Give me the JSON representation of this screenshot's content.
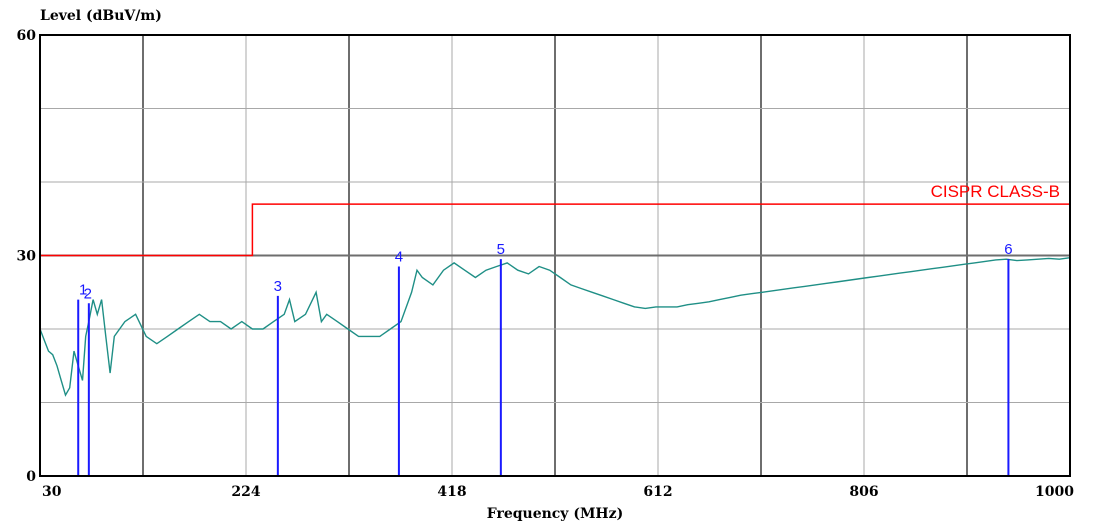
{
  "chart_data": {
    "type": "line",
    "title": "",
    "xlabel": "Frequency (MHz)",
    "ylabel": "Level (dBuV/m)",
    "xlim": [
      30,
      1000
    ],
    "ylim": [
      0,
      60
    ],
    "x_ticks": [
      "30",
      "224",
      "418",
      "612",
      "806",
      "1000"
    ],
    "y_ticks": [
      "0",
      "30",
      "60"
    ],
    "x_tick_values": [
      30,
      224,
      418,
      612,
      806,
      1000
    ],
    "y_tick_values": [
      0,
      30,
      60
    ],
    "x_grid_count": 10,
    "y_grid_count": 6,
    "grid": true,
    "colors": {
      "trace": "#1f8f86",
      "limit": "#ff0000",
      "marker": "#1a1aff",
      "grid_minor": "#a8a8a8",
      "grid_major": "#6e6e6e"
    },
    "limit_line": {
      "label": "CISPR CLASS-B",
      "points": [
        [
          30,
          30
        ],
        [
          230,
          30
        ],
        [
          230,
          37
        ],
        [
          1000,
          37
        ]
      ]
    },
    "series": [
      {
        "values": [
          [
            30,
            20
          ],
          [
            34,
            18.5
          ],
          [
            38,
            17
          ],
          [
            42,
            16.5
          ],
          [
            46,
            15
          ],
          [
            50,
            13
          ],
          [
            54,
            11
          ],
          [
            58,
            12
          ],
          [
            62,
            17
          ],
          [
            66,
            15
          ],
          [
            70,
            13
          ],
          [
            73,
            19
          ],
          [
            76,
            21
          ],
          [
            80,
            24
          ],
          [
            84,
            22
          ],
          [
            88,
            24
          ],
          [
            92,
            19
          ],
          [
            96,
            14
          ],
          [
            100,
            19
          ],
          [
            110,
            21
          ],
          [
            120,
            22
          ],
          [
            130,
            19
          ],
          [
            140,
            18
          ],
          [
            150,
            19
          ],
          [
            160,
            20
          ],
          [
            170,
            21
          ],
          [
            180,
            22
          ],
          [
            190,
            21
          ],
          [
            200,
            21
          ],
          [
            210,
            20
          ],
          [
            220,
            21
          ],
          [
            230,
            20
          ],
          [
            240,
            20
          ],
          [
            250,
            21
          ],
          [
            260,
            22
          ],
          [
            265,
            24
          ],
          [
            270,
            21
          ],
          [
            280,
            22
          ],
          [
            290,
            25
          ],
          [
            295,
            21
          ],
          [
            300,
            22
          ],
          [
            310,
            21
          ],
          [
            320,
            20
          ],
          [
            330,
            19
          ],
          [
            340,
            19
          ],
          [
            350,
            19
          ],
          [
            360,
            20
          ],
          [
            370,
            21
          ],
          [
            380,
            25
          ],
          [
            385,
            28
          ],
          [
            390,
            27
          ],
          [
            400,
            26
          ],
          [
            410,
            28
          ],
          [
            420,
            29
          ],
          [
            430,
            28
          ],
          [
            440,
            27
          ],
          [
            450,
            28
          ],
          [
            460,
            28.5
          ],
          [
            470,
            29
          ],
          [
            480,
            28
          ],
          [
            490,
            27.5
          ],
          [
            500,
            28.5
          ],
          [
            510,
            28
          ],
          [
            520,
            27
          ],
          [
            530,
            26
          ],
          [
            540,
            25.5
          ],
          [
            550,
            25
          ],
          [
            560,
            24.5
          ],
          [
            570,
            24
          ],
          [
            580,
            23.5
          ],
          [
            590,
            23
          ],
          [
            600,
            22.8
          ],
          [
            610,
            23
          ],
          [
            620,
            23
          ],
          [
            630,
            23
          ],
          [
            640,
            23.3
          ],
          [
            650,
            23.5
          ],
          [
            660,
            23.7
          ],
          [
            670,
            24
          ],
          [
            680,
            24.3
          ],
          [
            690,
            24.6
          ],
          [
            700,
            24.8
          ],
          [
            710,
            25
          ],
          [
            720,
            25.2
          ],
          [
            730,
            25.4
          ],
          [
            740,
            25.6
          ],
          [
            750,
            25.8
          ],
          [
            760,
            26
          ],
          [
            770,
            26.2
          ],
          [
            780,
            26.4
          ],
          [
            790,
            26.6
          ],
          [
            800,
            26.8
          ],
          [
            810,
            27
          ],
          [
            820,
            27.2
          ],
          [
            830,
            27.4
          ],
          [
            840,
            27.6
          ],
          [
            850,
            27.8
          ],
          [
            860,
            28
          ],
          [
            870,
            28.2
          ],
          [
            880,
            28.4
          ],
          [
            890,
            28.6
          ],
          [
            900,
            28.8
          ],
          [
            910,
            29
          ],
          [
            920,
            29.2
          ],
          [
            930,
            29.4
          ],
          [
            940,
            29.5
          ],
          [
            950,
            29.3
          ],
          [
            960,
            29.4
          ],
          [
            970,
            29.5
          ],
          [
            980,
            29.6
          ],
          [
            990,
            29.5
          ],
          [
            1000,
            29.7
          ]
        ]
      }
    ],
    "markers": [
      {
        "label": "1",
        "freq": 66,
        "level": 24
      },
      {
        "label": "2",
        "freq": 76,
        "level": 23.5
      },
      {
        "label": "3",
        "freq": 254,
        "level": 24.5
      },
      {
        "label": "4",
        "freq": 368,
        "level": 28.5
      },
      {
        "label": "5",
        "freq": 464,
        "level": 29.5
      },
      {
        "label": "6",
        "freq": 942,
        "level": 29.5
      }
    ]
  }
}
